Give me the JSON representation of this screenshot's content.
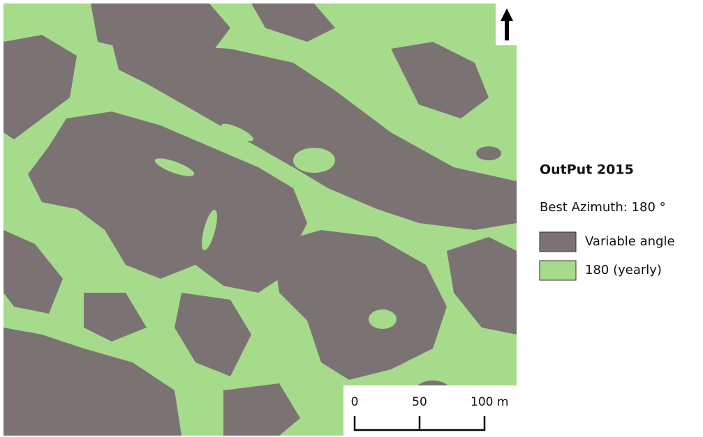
{
  "map": {
    "legend": {
      "title": "OutPut 2015",
      "subtitle": "Best Azimuth: 180 °",
      "items": [
        {
          "label": "Variable angle",
          "color": "#7b7373"
        },
        {
          "label": "180 (yearly)",
          "color": "#a6db8c"
        }
      ]
    },
    "scale_bar": {
      "labels": [
        "0",
        "50",
        "100 m"
      ]
    }
  }
}
